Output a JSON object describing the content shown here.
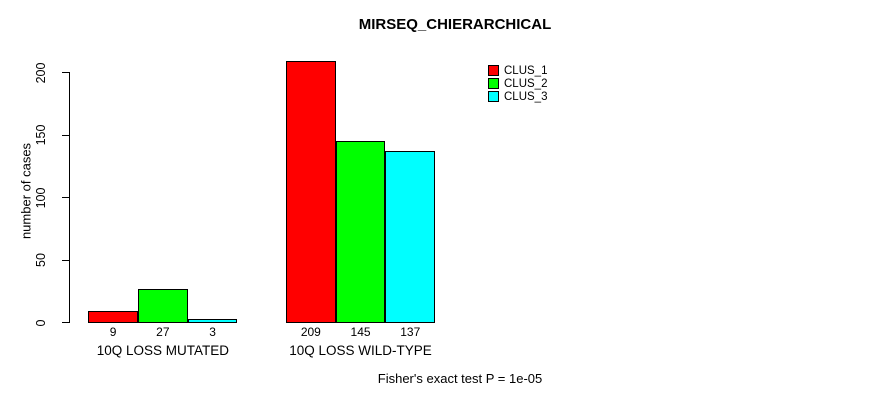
{
  "chart_data": {
    "type": "bar",
    "title": "MIRSEQ_CHIERARCHICAL",
    "ylabel": "number of cases",
    "xlabel": "",
    "categories": [
      "10Q LOSS MUTATED",
      "10Q LOSS WILD-TYPE"
    ],
    "series": [
      {
        "name": "CLUS_1",
        "color": "#FF0000",
        "values": [
          9,
          209
        ]
      },
      {
        "name": "CLUS_2",
        "color": "#00FF00",
        "values": [
          27,
          145
        ]
      },
      {
        "name": "CLUS_3",
        "color": "#00FFFF",
        "values": [
          3,
          137
        ]
      }
    ],
    "bar_value_labels": [
      [
        9,
        27,
        3
      ],
      [
        209,
        145,
        137
      ]
    ],
    "yticks": [
      0,
      50,
      100,
      150,
      200
    ],
    "ylim": [
      0,
      209
    ],
    "grid": false,
    "legend_position": "top-right",
    "annotation": "Fisher's exact test P = 1e-05"
  },
  "legend": {
    "entries": [
      {
        "label": "CLUS_1",
        "color": "#FF0000"
      },
      {
        "label": "CLUS_2",
        "color": "#00FF00"
      },
      {
        "label": "CLUS_3",
        "color": "#00FFFF"
      }
    ]
  },
  "colors": {
    "background": "#FFFFFF",
    "axis": "#000000",
    "text": "#000000"
  }
}
